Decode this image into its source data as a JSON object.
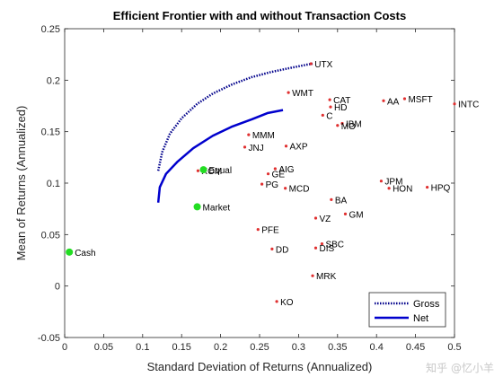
{
  "chart_data": {
    "type": "scatter",
    "title": "Efficient Frontier with and without Transaction Costs",
    "xlabel": "Standard Deviation of Returns (Annualized)",
    "ylabel": "Mean of Returns (Annualized)",
    "xlim": [
      0,
      0.5
    ],
    "ylim": [
      -0.05,
      0.25
    ],
    "xticks": [
      "0",
      "0.05",
      "0.1",
      "0.15",
      "0.2",
      "0.25",
      "0.3",
      "0.35",
      "0.4",
      "0.45",
      "0.5"
    ],
    "yticks": [
      "-0.05",
      "0",
      "0.05",
      "0.1",
      "0.15",
      "0.2",
      "0.25"
    ],
    "grid": false,
    "legend": {
      "position": "bottom-right",
      "entries": [
        "Gross",
        "Net"
      ]
    },
    "colors": {
      "gross": "#00008B",
      "net": "#0000CD",
      "asset_marker": "#E03030",
      "highlight_marker": "#22DD22"
    },
    "series": [
      {
        "name": "Gross",
        "style": "dotted",
        "x": [
          0.12,
          0.125,
          0.135,
          0.15,
          0.17,
          0.19,
          0.215,
          0.24,
          0.265,
          0.29,
          0.31,
          0.318
        ],
        "y": [
          0.112,
          0.13,
          0.148,
          0.163,
          0.177,
          0.187,
          0.196,
          0.203,
          0.208,
          0.212,
          0.215,
          0.216
        ]
      },
      {
        "name": "Net",
        "style": "solid",
        "x": [
          0.12,
          0.122,
          0.13,
          0.145,
          0.165,
          0.19,
          0.215,
          0.24,
          0.26,
          0.28
        ],
        "y": [
          0.081,
          0.096,
          0.109,
          0.121,
          0.134,
          0.146,
          0.155,
          0.162,
          0.168,
          0.171
        ]
      }
    ],
    "points": [
      {
        "label": "UTX",
        "x": 0.316,
        "y": 0.216
      },
      {
        "label": "WMT",
        "x": 0.287,
        "y": 0.188
      },
      {
        "label": "CAT",
        "x": 0.34,
        "y": 0.181
      },
      {
        "label": "HD",
        "x": 0.341,
        "y": 0.174
      },
      {
        "label": "C",
        "x": 0.331,
        "y": 0.166
      },
      {
        "label": "IBM",
        "x": 0.356,
        "y": 0.158
      },
      {
        "label": "MO",
        "x": 0.35,
        "y": 0.156
      },
      {
        "label": "AA",
        "x": 0.409,
        "y": 0.18
      },
      {
        "label": "MSFT",
        "x": 0.436,
        "y": 0.182
      },
      {
        "label": "INTC",
        "x": 0.5,
        "y": 0.177
      },
      {
        "label": "MMM",
        "x": 0.236,
        "y": 0.147
      },
      {
        "label": "JNJ",
        "x": 0.231,
        "y": 0.135
      },
      {
        "label": "AXP",
        "x": 0.284,
        "y": 0.136
      },
      {
        "label": "AIG",
        "x": 0.27,
        "y": 0.114
      },
      {
        "label": "GE",
        "x": 0.261,
        "y": 0.109
      },
      {
        "label": "PG",
        "x": 0.253,
        "y": 0.099
      },
      {
        "label": "MCD",
        "x": 0.283,
        "y": 0.095
      },
      {
        "label": "XOM",
        "x": 0.171,
        "y": 0.112
      },
      {
        "label": "Equal",
        "x": 0.178,
        "y": 0.113,
        "highlight": true
      },
      {
        "label": "Market",
        "x": 0.17,
        "y": 0.077,
        "highlight": true
      },
      {
        "label": "Cash",
        "x": 0.006,
        "y": 0.033,
        "highlight": true
      },
      {
        "label": "JPM",
        "x": 0.406,
        "y": 0.102
      },
      {
        "label": "HON",
        "x": 0.416,
        "y": 0.095
      },
      {
        "label": "HPQ",
        "x": 0.465,
        "y": 0.096
      },
      {
        "label": "BA",
        "x": 0.342,
        "y": 0.084
      },
      {
        "label": "GM",
        "x": 0.36,
        "y": 0.07
      },
      {
        "label": "VZ",
        "x": 0.322,
        "y": 0.066
      },
      {
        "label": "PFE",
        "x": 0.248,
        "y": 0.055
      },
      {
        "label": "SBC",
        "x": 0.33,
        "y": 0.041
      },
      {
        "label": "DIS",
        "x": 0.322,
        "y": 0.037
      },
      {
        "label": "DD",
        "x": 0.266,
        "y": 0.036
      },
      {
        "label": "MRK",
        "x": 0.318,
        "y": 0.01
      },
      {
        "label": "KO",
        "x": 0.272,
        "y": -0.015
      }
    ]
  },
  "watermark": "知乎 @忆小羊"
}
